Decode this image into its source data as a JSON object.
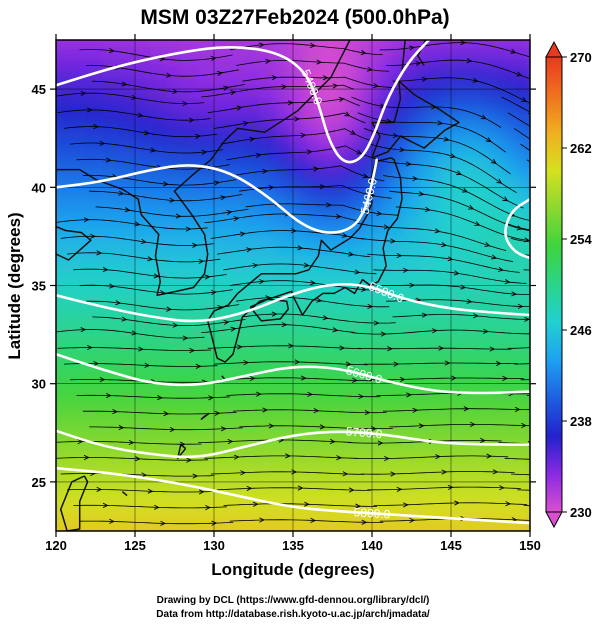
{
  "title": "MSM 03Z27Feb2024 (500.0hPa)",
  "credits": [
    "Drawing by DCL (https://www.gfd-dennou.org/library/dcl/)",
    "Data from http://database.rish.kyoto-u.ac.jp/arch/jmadata/"
  ],
  "chart_data": {
    "type": "heatmap",
    "title": "MSM 03Z27Feb2024 (500.0hPa)",
    "xlabel": "Longitude (degrees)",
    "ylabel": "Latitude  (degrees)",
    "xlim": [
      120,
      150
    ],
    "ylim": [
      22.5,
      47.5
    ],
    "x_ticks": [
      120,
      125,
      130,
      135,
      140,
      145,
      150
    ],
    "y_ticks": [
      25,
      30,
      35,
      40,
      45
    ],
    "grid": true,
    "colorbar": {
      "min": 230,
      "max": 270,
      "ticks": [
        230,
        238,
        246,
        254,
        262,
        270
      ],
      "colors": [
        "#d94fd0",
        "#8a2be2",
        "#2222cc",
        "#1e5fe0",
        "#1ea0f0",
        "#22d0d0",
        "#2ad48a",
        "#3ed43e",
        "#8ad830",
        "#d6e020",
        "#f0b020",
        "#f07020",
        "#e83a1e"
      ]
    },
    "contours": [
      {
        "label": "5400.0",
        "points": [
          [
            120,
            45.2
          ],
          [
            124,
            46.2
          ],
          [
            128,
            46.9
          ],
          [
            131,
            47.2
          ],
          [
            134,
            46.9
          ],
          [
            135.8,
            45.9
          ],
          [
            136.6,
            44.3
          ],
          [
            137.3,
            42.3
          ],
          [
            138.2,
            41.2
          ],
          [
            139.3,
            41.4
          ],
          [
            140.1,
            42.6
          ],
          [
            141.0,
            44.6
          ],
          [
            142.3,
            46.4
          ],
          [
            143.6,
            47.5
          ]
        ]
      },
      {
        "label": "5400.0",
        "points": [
          [
            120,
            40.0
          ],
          [
            123,
            40.3
          ],
          [
            126,
            40.9
          ],
          [
            128.5,
            41.2
          ],
          [
            131,
            40.8
          ],
          [
            133.5,
            39.5
          ],
          [
            135.5,
            38.1
          ],
          [
            137.2,
            37.6
          ],
          [
            138.8,
            37.9
          ],
          [
            139.6,
            38.9
          ],
          [
            140.0,
            40.2
          ],
          [
            140.3,
            41.4
          ]
        ]
      },
      {
        "label": "5500.0",
        "points": [
          [
            120,
            34.5
          ],
          [
            123,
            33.9
          ],
          [
            126,
            33.4
          ],
          [
            129,
            33.1
          ],
          [
            132,
            33.6
          ],
          [
            135,
            34.6
          ],
          [
            137.5,
            35.1
          ],
          [
            139.8,
            35.0
          ],
          [
            142,
            34.3
          ],
          [
            145,
            33.8
          ],
          [
            148,
            33.6
          ],
          [
            150,
            33.5
          ]
        ]
      },
      {
        "label": "5600.0",
        "points": [
          [
            120,
            31.5
          ],
          [
            123,
            30.7
          ],
          [
            126,
            30.0
          ],
          [
            129,
            29.9
          ],
          [
            132,
            30.4
          ],
          [
            135,
            30.9
          ],
          [
            138,
            30.8
          ],
          [
            141,
            30.1
          ],
          [
            144,
            29.6
          ],
          [
            147,
            29.5
          ],
          [
            150,
            29.6
          ]
        ]
      },
      {
        "label": "5700.0",
        "points": [
          [
            120,
            27.6
          ],
          [
            123,
            26.8
          ],
          [
            126,
            26.4
          ],
          [
            129,
            26.2
          ],
          [
            132,
            26.8
          ],
          [
            135,
            27.4
          ],
          [
            138,
            27.6
          ],
          [
            141,
            27.4
          ],
          [
            144,
            27.0
          ],
          [
            147,
            26.9
          ],
          [
            150,
            26.9
          ]
        ]
      },
      {
        "label": "5800.0",
        "points": [
          [
            120,
            25.7
          ],
          [
            124,
            25.4
          ],
          [
            128,
            24.9
          ],
          [
            132,
            24.2
          ],
          [
            135,
            23.7
          ],
          [
            138,
            23.5
          ],
          [
            142,
            23.3
          ],
          [
            146,
            23.1
          ],
          [
            150,
            22.9
          ]
        ]
      },
      {
        "label": "",
        "points": [
          [
            150,
            39.4
          ],
          [
            148.8,
            38.8
          ],
          [
            148.3,
            37.6
          ],
          [
            149.0,
            36.7
          ],
          [
            150,
            36.4
          ]
        ]
      }
    ]
  }
}
